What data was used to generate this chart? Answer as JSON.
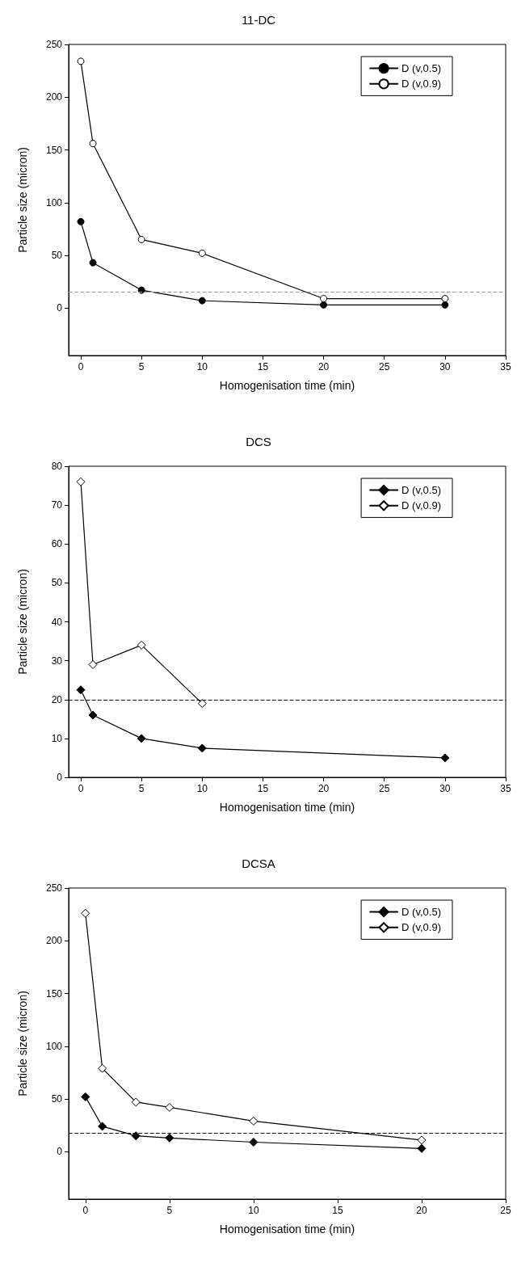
{
  "chart_data": [
    {
      "type": "line",
      "title": "11-DC",
      "xlabel": "Homogenisation time (min)",
      "ylabel": "Particle size (micron)",
      "xlim": [
        -1,
        35
      ],
      "xticks": [
        0,
        5,
        10,
        15,
        20,
        25,
        30,
        35
      ],
      "ylim": [
        -45,
        250
      ],
      "yticks": [
        0,
        50,
        100,
        150,
        200,
        250
      ],
      "grid": false,
      "legend": "top right",
      "marker": "circle",
      "line_style": "solid",
      "ref_lines": [
        {
          "axis": "y",
          "value": 15,
          "color": "#999999",
          "line_style": "dashed"
        }
      ],
      "series": [
        {
          "name": "D (v,0.5)",
          "color": "#000000",
          "x": [
            0,
            1,
            5,
            10,
            20,
            30
          ],
          "values": [
            82,
            43,
            17,
            7,
            3,
            3
          ]
        },
        {
          "name": "D (v,0.9)",
          "color": "#000000",
          "x": [
            0,
            1,
            5,
            10,
            20,
            30
          ],
          "values": [
            234,
            156,
            65,
            52,
            9,
            9
          ]
        }
      ]
    },
    {
      "type": "line",
      "title": "DCS",
      "xlabel": "Homogenisation time (min)",
      "ylabel": "Particle size (micron)",
      "xlim": [
        -1,
        35
      ],
      "xticks": [
        0,
        5,
        10,
        15,
        20,
        25,
        30,
        35
      ],
      "ylim": [
        0,
        80
      ],
      "yticks": [
        0,
        10,
        20,
        30,
        40,
        50,
        60,
        70,
        80
      ],
      "grid": false,
      "legend": "top right",
      "marker": "diamond",
      "line_style": "solid",
      "ref_lines": [
        {
          "axis": "y",
          "value": 20,
          "color": "#000000",
          "line_style": "dashed"
        }
      ],
      "series": [
        {
          "name": "D (v,0.5)",
          "color": "#000000",
          "x": [
            0,
            1,
            5,
            10,
            30
          ],
          "values": [
            22.5,
            16,
            10,
            7.5,
            5
          ]
        },
        {
          "name": "D (v,0.9)",
          "color": "#000000",
          "x": [
            0,
            1,
            5,
            10
          ],
          "values": [
            76,
            29,
            34,
            19
          ]
        }
      ]
    },
    {
      "type": "line",
      "title": "DCSA",
      "xlabel": "Homogenisation time (min)",
      "ylabel": "Particle size (micron)",
      "xlim": [
        -1,
        25
      ],
      "xticks": [
        0,
        5,
        10,
        15,
        20,
        25
      ],
      "ylim": [
        -45,
        250
      ],
      "yticks": [
        0,
        50,
        100,
        150,
        200,
        250
      ],
      "grid": false,
      "legend": "top right",
      "marker": "diamond",
      "line_style": "solid",
      "ref_lines": [
        {
          "axis": "y",
          "value": 18,
          "color": "#000000",
          "line_style": "dashed"
        }
      ],
      "series": [
        {
          "name": "D (v,0.5)",
          "color": "#000000",
          "x": [
            0,
            1,
            3,
            5,
            10,
            20
          ],
          "values": [
            52,
            24,
            15,
            13,
            9,
            3
          ]
        },
        {
          "name": "D (v,0.9)",
          "color": "#000000",
          "x": [
            0,
            1,
            3,
            5,
            10,
            20
          ],
          "values": [
            226,
            79,
            47,
            42,
            29,
            11
          ]
        }
      ]
    }
  ]
}
